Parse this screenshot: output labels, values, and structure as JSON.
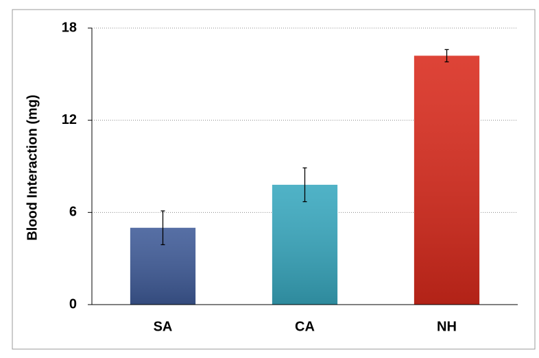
{
  "chart_data": {
    "type": "bar",
    "y_label": "Blood Interaction (mg)",
    "categories": [
      "SA",
      "CA",
      "NH"
    ],
    "values": [
      5.0,
      7.8,
      16.2
    ],
    "errors": [
      1.1,
      1.1,
      0.4
    ],
    "colors": [
      "#3f5b98",
      "#38a8bf",
      "#d92a1c"
    ],
    "ylim": [
      0,
      18
    ],
    "yticks": [
      0,
      6,
      12,
      18
    ],
    "grid": true
  }
}
